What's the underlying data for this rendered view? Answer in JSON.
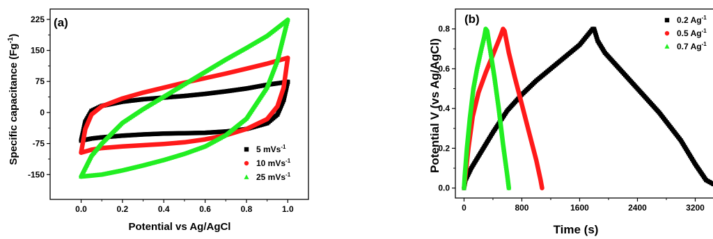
{
  "chart_data": [
    {
      "panel_label": "(a)",
      "type": "line",
      "xlabel": "Potential vs Ag/AgCl",
      "ylabel": "Specific capacitance (Fg-1)",
      "ylabel_main": "Specific capacitance (Fg",
      "ylabel_sup": "-1",
      "ylabel_tail": ")",
      "xlim": [
        -0.15,
        1.1
      ],
      "ylim": [
        -210,
        250
      ],
      "xticks": [
        "0.0",
        "0.2",
        "0.4",
        "0.6",
        "0.8",
        "1.0"
      ],
      "xtick_values": [
        0.0,
        0.2,
        0.4,
        0.6,
        0.8,
        1.0
      ],
      "yticks": [
        "225",
        "150",
        "75",
        "0",
        "-75",
        "-150"
      ],
      "ytick_values": [
        225,
        150,
        75,
        0,
        -75,
        -150
      ],
      "legend_position": "bottom-right",
      "series": [
        {
          "name": "5 mVs-1",
          "legend_main": "5 mVs",
          "legend_sup": "-1",
          "color": "#000000",
          "marker": "square",
          "upper": [
            [
              0.0,
              -68
            ],
            [
              0.02,
              -22
            ],
            [
              0.05,
              4
            ],
            [
              0.1,
              16
            ],
            [
              0.2,
              26
            ],
            [
              0.3,
              32
            ],
            [
              0.4,
              36
            ],
            [
              0.5,
              40
            ],
            [
              0.6,
              45
            ],
            [
              0.7,
              51
            ],
            [
              0.8,
              58
            ],
            [
              0.9,
              67
            ],
            [
              1.0,
              74
            ]
          ],
          "lower": [
            [
              0.0,
              -68
            ],
            [
              0.05,
              -63
            ],
            [
              0.1,
              -60
            ],
            [
              0.2,
              -56
            ],
            [
              0.3,
              -53
            ],
            [
              0.4,
              -51
            ],
            [
              0.5,
              -50
            ],
            [
              0.6,
              -49
            ],
            [
              0.7,
              -46
            ],
            [
              0.8,
              -40
            ],
            [
              0.9,
              -26
            ],
            [
              0.95,
              -5
            ],
            [
              0.98,
              30
            ],
            [
              1.0,
              74
            ]
          ]
        },
        {
          "name": "10 mVs-1",
          "legend_main": "10 mVs",
          "legend_sup": "-1",
          "color": "#ff1a1a",
          "marker": "circle",
          "upper": [
            [
              0.0,
              -97
            ],
            [
              0.02,
              -40
            ],
            [
              0.05,
              -5
            ],
            [
              0.1,
              15
            ],
            [
              0.2,
              34
            ],
            [
              0.3,
              48
            ],
            [
              0.4,
              60
            ],
            [
              0.5,
              72
            ],
            [
              0.6,
              83
            ],
            [
              0.7,
              94
            ],
            [
              0.8,
              106
            ],
            [
              0.9,
              118
            ],
            [
              1.0,
              132
            ]
          ],
          "lower": [
            [
              0.0,
              -97
            ],
            [
              0.05,
              -90
            ],
            [
              0.1,
              -86
            ],
            [
              0.2,
              -82
            ],
            [
              0.3,
              -79
            ],
            [
              0.4,
              -76
            ],
            [
              0.5,
              -72
            ],
            [
              0.6,
              -65
            ],
            [
              0.7,
              -55
            ],
            [
              0.8,
              -40
            ],
            [
              0.9,
              -16
            ],
            [
              0.95,
              15
            ],
            [
              0.98,
              60
            ],
            [
              1.0,
              132
            ]
          ]
        },
        {
          "name": "25 mVs-1",
          "legend_main": "25 mVs",
          "legend_sup": "-1",
          "color": "#22ee22",
          "marker": "triangle",
          "upper": [
            [
              0.0,
              -155
            ],
            [
              0.05,
              -105
            ],
            [
              0.1,
              -75
            ],
            [
              0.2,
              -25
            ],
            [
              0.3,
              8
            ],
            [
              0.4,
              38
            ],
            [
              0.5,
              68
            ],
            [
              0.6,
              98
            ],
            [
              0.7,
              128
            ],
            [
              0.8,
              156
            ],
            [
              0.9,
              185
            ],
            [
              1.0,
              224
            ]
          ],
          "lower": [
            [
              0.0,
              -155
            ],
            [
              0.1,
              -150
            ],
            [
              0.2,
              -140
            ],
            [
              0.3,
              -128
            ],
            [
              0.4,
              -115
            ],
            [
              0.5,
              -100
            ],
            [
              0.6,
              -82
            ],
            [
              0.7,
              -55
            ],
            [
              0.8,
              -15
            ],
            [
              0.9,
              60
            ],
            [
              0.95,
              125
            ],
            [
              1.0,
              224
            ]
          ]
        }
      ]
    },
    {
      "panel_label": "(b)",
      "type": "line",
      "xlabel": "Time (s)",
      "ylabel": "Potential V (vs Ag/AgCl)",
      "xlim": [
        -120,
        3600
      ],
      "ylim": [
        -0.05,
        0.9
      ],
      "xticks": [
        "0",
        "800",
        "1600",
        "2400",
        "3200"
      ],
      "xtick_values": [
        0,
        800,
        1600,
        2400,
        3200
      ],
      "yticks": [
        "0.8",
        "0.6",
        "0.4",
        "0.2",
        "0.0"
      ],
      "ytick_values": [
        0.8,
        0.6,
        0.4,
        0.2,
        0.0
      ],
      "legend_position": "top-right",
      "series": [
        {
          "name": "0.2 Ag-1",
          "legend_main": "0.2 Ag",
          "legend_sup": "-1",
          "color": "#000000",
          "marker": "square",
          "points": [
            [
              0,
              0.0
            ],
            [
              20,
              0.04
            ],
            [
              100,
              0.1
            ],
            [
              200,
              0.16
            ],
            [
              400,
              0.28
            ],
            [
              600,
              0.39
            ],
            [
              800,
              0.47
            ],
            [
              1000,
              0.54
            ],
            [
              1200,
              0.6
            ],
            [
              1400,
              0.66
            ],
            [
              1600,
              0.72
            ],
            [
              1780,
              0.8
            ],
            [
              1800,
              0.8
            ],
            [
              1850,
              0.74
            ],
            [
              1950,
              0.68
            ],
            [
              2100,
              0.62
            ],
            [
              2400,
              0.5
            ],
            [
              2700,
              0.38
            ],
            [
              3000,
              0.24
            ],
            [
              3200,
              0.12
            ],
            [
              3350,
              0.04
            ],
            [
              3500,
              0.01
            ],
            [
              3580,
              0.0
            ]
          ]
        },
        {
          "name": "0.5 Ag-1",
          "legend_main": "0.5 Ag",
          "legend_sup": "-1",
          "color": "#ff1a1a",
          "marker": "circle",
          "points": [
            [
              0,
              0.0
            ],
            [
              15,
              0.05
            ],
            [
              60,
              0.2
            ],
            [
              120,
              0.36
            ],
            [
              200,
              0.48
            ],
            [
              300,
              0.58
            ],
            [
              400,
              0.67
            ],
            [
              500,
              0.76
            ],
            [
              540,
              0.8
            ],
            [
              560,
              0.79
            ],
            [
              620,
              0.68
            ],
            [
              700,
              0.56
            ],
            [
              800,
              0.42
            ],
            [
              900,
              0.28
            ],
            [
              1000,
              0.14
            ],
            [
              1060,
              0.04
            ],
            [
              1080,
              0.0
            ]
          ]
        },
        {
          "name": "0.7 Ag-1",
          "legend_main": "0.7 Ag",
          "legend_sup": "-1",
          "color": "#22ee22",
          "marker": "triangle",
          "points": [
            [
              0,
              0.0
            ],
            [
              10,
              0.06
            ],
            [
              40,
              0.2
            ],
            [
              80,
              0.35
            ],
            [
              130,
              0.5
            ],
            [
              180,
              0.6
            ],
            [
              240,
              0.7
            ],
            [
              280,
              0.76
            ],
            [
              300,
              0.8
            ],
            [
              320,
              0.79
            ],
            [
              360,
              0.7
            ],
            [
              420,
              0.56
            ],
            [
              480,
              0.4
            ],
            [
              540,
              0.22
            ],
            [
              600,
              0.06
            ],
            [
              620,
              0.0
            ]
          ]
        }
      ]
    }
  ]
}
